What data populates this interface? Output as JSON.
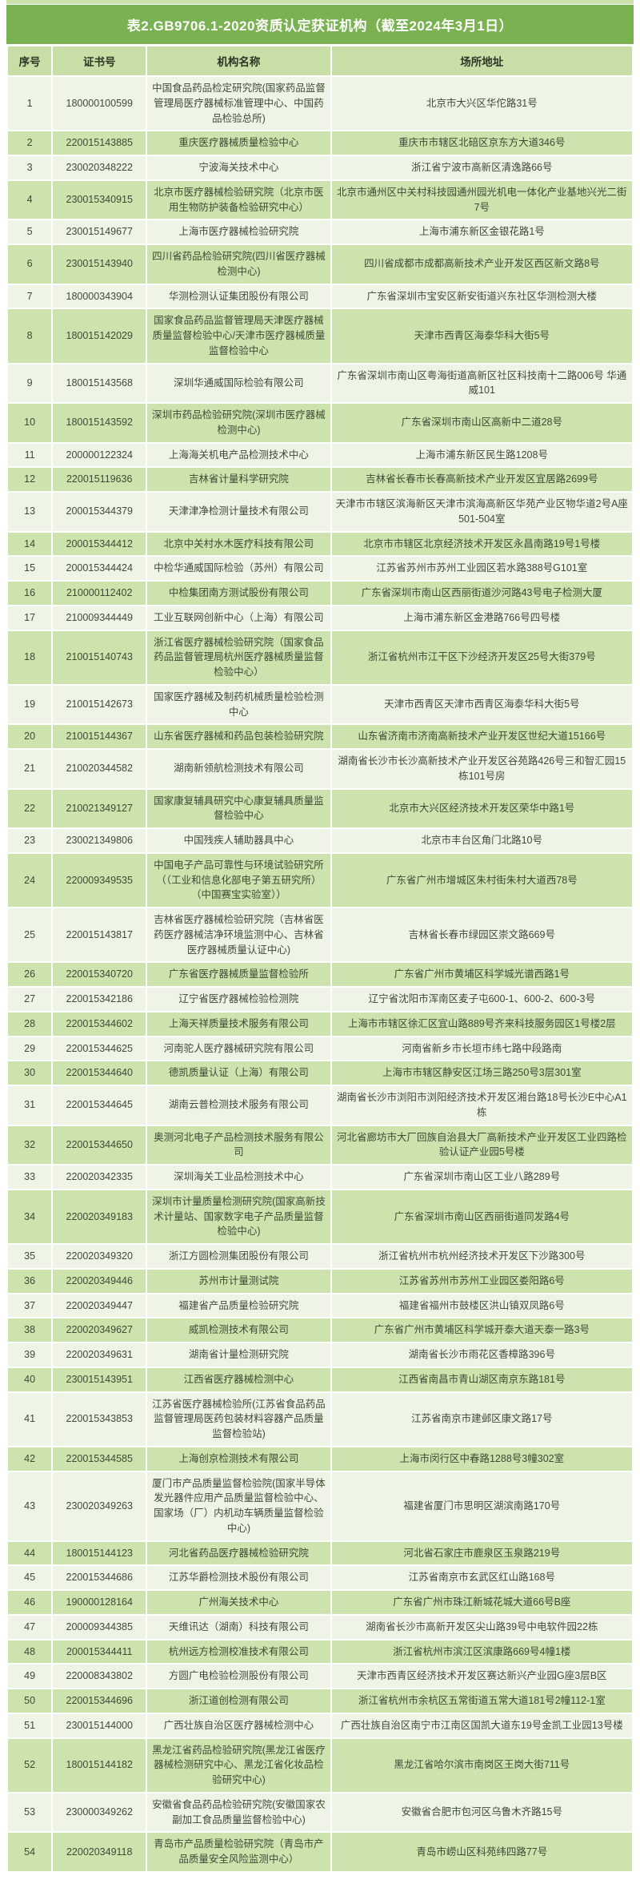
{
  "page": {
    "title": "表2.GB9706.1-2020资质认定获证机构（截至2024年3月1日）"
  },
  "colors": {
    "title_bar": "#7ab151",
    "top_strip": "#cde3ad",
    "header_bg": "#c7dfa6",
    "row_odd": "#eff5e6",
    "row_even": "#cce3ae",
    "title_text": "#ffffff",
    "body_text": "#3c4a34"
  },
  "table": {
    "columns": [
      "序号",
      "证书号",
      "机构名称",
      "场所地址"
    ],
    "rows": [
      {
        "no": "1",
        "cert": "180000100599",
        "name": "中国食品药品检定研究院(国家药品监督管理局医疗器械标准管理中心、中国药品检验总所)",
        "addr": "北京市大兴区华佗路31号"
      },
      {
        "no": "2",
        "cert": "220015143885",
        "name": "重庆医疗器械质量检验中心",
        "addr": "重庆市市辖区北碚区京东方大道346号"
      },
      {
        "no": "3",
        "cert": "230020348222",
        "name": "宁波海关技术中心",
        "addr": "浙江省宁波市高新区清逸路66号"
      },
      {
        "no": "4",
        "cert": "230015340915",
        "name": "北京市医疗器械检验研究院（北京市医用生物防护装备检验研究中心）",
        "addr": "北京市通州区中关村科技园通州园光机电一体化产业基地兴光二街7号"
      },
      {
        "no": "5",
        "cert": "230015149677",
        "name": "上海市医疗器械检验研究院",
        "addr": "上海市浦东新区金银花路1号"
      },
      {
        "no": "6",
        "cert": "230015143940",
        "name": "四川省药品检验研究院(四川省医疗器械检测中心)",
        "addr": "四川省成都市成都高新技术产业开发区西区新文路8号"
      },
      {
        "no": "7",
        "cert": "180000343904",
        "name": "华测检测认证集团股份有限公司",
        "addr": "广东省深圳市宝安区新安街道兴东社区华测检测大楼"
      },
      {
        "no": "8",
        "cert": "180015142029",
        "name": "国家食品药品监督管理局天津医疗器械质量监督检验中心/天津市医疗器械质量监督检验中心",
        "addr": "天津市西青区海泰华科大街5号"
      },
      {
        "no": "9",
        "cert": "180015143568",
        "name": "深圳华通威国际检验有限公司",
        "addr": "广东省深圳市南山区粤海街道高新区社区科技南十二路006号 华通威101"
      },
      {
        "no": "10",
        "cert": "180015143592",
        "name": "深圳市药品检验研究院(深圳市医疗器械检测中心)",
        "addr": "广东省深圳市南山区高新中二道28号"
      },
      {
        "no": "11",
        "cert": "200000122324",
        "name": "上海海关机电产品检测技术中心",
        "addr": "上海市浦东新区民生路1208号"
      },
      {
        "no": "12",
        "cert": "220015119636",
        "name": "吉林省计量科学研究院",
        "addr": "吉林省长春市长春高新技术产业开发区宜居路2699号"
      },
      {
        "no": "13",
        "cert": "200015344379",
        "name": "天津津净检测计量技术有限公司",
        "addr": "天津市市辖区滨海新区天津市滨海高新区华苑产业区物华道2号A座501-504室"
      },
      {
        "no": "14",
        "cert": "200015344412",
        "name": "北京中关村水木医疗科技有限公司",
        "addr": "北京市市辖区北京经济技术开发区永昌南路19号1号楼"
      },
      {
        "no": "15",
        "cert": "200015344424",
        "name": "中检华通威国际检验（苏州）有限公司",
        "addr": "江苏省苏州市苏州工业园区若水路388号G101室"
      },
      {
        "no": "16",
        "cert": "210000112402",
        "name": "中检集团南方测试股份有限公司",
        "addr": "广东省深圳市南山区西丽街道沙河路43号电子检测大厦"
      },
      {
        "no": "17",
        "cert": "210009344449",
        "name": "工业互联网创新中心（上海）有限公司",
        "addr": "上海市浦东新区金港路766号四号楼"
      },
      {
        "no": "18",
        "cert": "210015140743",
        "name": "浙江省医疗器械检验研究院（国家食品药品监督管理局杭州医疗器械质量监督检验中心）",
        "addr": "浙江省杭州市江干区下沙经济开发区25号大街379号"
      },
      {
        "no": "19",
        "cert": "210015142673",
        "name": "国家医疗器械及制药机械质量检验检测中心",
        "addr": "天津市西青区天津市西青区海泰华科大街5号"
      },
      {
        "no": "20",
        "cert": "210015144367",
        "name": "山东省医疗器械和药品包装检验研究院",
        "addr": "山东省济南市济南高新技术产业开发区世纪大道15166号"
      },
      {
        "no": "21",
        "cert": "210020344582",
        "name": "湖南新领航检测技术有限公司",
        "addr": "湖南省长沙市长沙高新技术产业开发区谷苑路426号三和智汇园15栋101号房"
      },
      {
        "no": "22",
        "cert": "210021349127",
        "name": "国家康复辅具研究中心康复辅具质量监督检验中心",
        "addr": "北京市大兴区经济技术开发区荣华中路1号"
      },
      {
        "no": "23",
        "cert": "230021349806",
        "name": "中国残疾人辅助器具中心",
        "addr": "北京市丰台区角门北路10号"
      },
      {
        "no": "24",
        "cert": "220009349535",
        "name": "中国电子产品可靠性与环境试验研究所（（工业和信息化部电子第五研究所）（中国赛宝实验室））",
        "addr": "广东省广州市增城区朱村街朱村大道西78号"
      },
      {
        "no": "25",
        "cert": "220015143817",
        "name": "吉林省医疗器械检验研究院（吉林省医药医疗器械洁净环境监测中心、吉林省医疗器械质量认证中心)",
        "addr": "吉林省长春市绿园区崇文路669号"
      },
      {
        "no": "26",
        "cert": "220015340720",
        "name": "广东省医疗器械质量监督检验所",
        "addr": "广东省广州市黄埔区科学城光谱西路1号"
      },
      {
        "no": "27",
        "cert": "220015342186",
        "name": "辽宁省医疗器械检验检测院",
        "addr": "辽宁省沈阳市浑南区麦子屯600-1、600-2、600-3号"
      },
      {
        "no": "28",
        "cert": "220015344602",
        "name": "上海天祥质量技术服务有限公司",
        "addr": "上海市市辖区徐汇区宜山路889号齐来科技服务园区1号楼2层"
      },
      {
        "no": "29",
        "cert": "220015344625",
        "name": "河南驼人医疗器械研究院有限公司",
        "addr": "河南省新乡市长垣市纬七路中段路南"
      },
      {
        "no": "30",
        "cert": "220015344640",
        "name": "德凯质量认证（上海）有限公司",
        "addr": "上海市市辖区静安区江场三路250号3层301室"
      },
      {
        "no": "31",
        "cert": "220015344645",
        "name": "湖南云普检测技术服务有限公司",
        "addr": "湖南省长沙市浏阳市浏阳经济技术开发区湘台路18号长沙E中心A1栋"
      },
      {
        "no": "32",
        "cert": "220015344650",
        "name": "奥测河北电子产品检测技术服务有限公司",
        "addr": "河北省廊坊市大厂回族自治县大厂高新技术产业开发区工业四路检验认证产业园5号楼"
      },
      {
        "no": "33",
        "cert": "220020342335",
        "name": "深圳海关工业品检测技术中心",
        "addr": "广东省深圳市南山区工业八路289号"
      },
      {
        "no": "34",
        "cert": "220020349183",
        "name": "深圳市计量质量检测研究院(国家高新技术计量站、国家数字电子产品质量监督检验中心)",
        "addr": "广东省深圳市南山区西丽街道同发路4号"
      },
      {
        "no": "35",
        "cert": "220020349320",
        "name": "浙江方圆检测集团股份有限公司",
        "addr": "浙江省杭州市杭州经济技术开发区下沙路300号"
      },
      {
        "no": "36",
        "cert": "220020349446",
        "name": "苏州市计量测试院",
        "addr": "江苏省苏州市苏州工业园区娄阳路6号"
      },
      {
        "no": "37",
        "cert": "220020349447",
        "name": "福建省产品质量检验研究院",
        "addr": "福建省福州市鼓楼区洪山镇双凤路6号"
      },
      {
        "no": "38",
        "cert": "220020349627",
        "name": "威凯检测技术有限公司",
        "addr": "广东省广州市黄埔区科学城开泰大道天泰一路3号"
      },
      {
        "no": "39",
        "cert": "220020349631",
        "name": "湖南省计量检测研究院",
        "addr": "湖南省长沙市雨花区香樟路396号"
      },
      {
        "no": "40",
        "cert": "230015143951",
        "name": "江西省医疗器械检测中心",
        "addr": "江西省南昌市青山湖区南京东路181号"
      },
      {
        "no": "41",
        "cert": "220015343853",
        "name": "江苏省医疗器械检验所(江苏省食品药品监督管理局医药包装材料容器产品质量监督检验站)",
        "addr": "江苏省南京市建邺区康文路17号"
      },
      {
        "no": "42",
        "cert": "220015344585",
        "name": "上海创京检测技术有限公司",
        "addr": "上海市闵行区中春路1288号3幢302室"
      },
      {
        "no": "43",
        "cert": "230020349263",
        "name": "厦门市产品质量监督检验院(国家半导体发光器件应用产品质量监督检验中心、国家场（厂）内机动车辆质量监督检验中心)",
        "addr": "福建省厦门市思明区湖滨南路170号"
      },
      {
        "no": "44",
        "cert": "180015144123",
        "name": "河北省药品医疗器械检验研究院",
        "addr": "河北省石家庄市鹿泉区玉泉路219号"
      },
      {
        "no": "45",
        "cert": "220015344686",
        "name": "江苏华爵检测技术股份有限公司",
        "addr": "江苏省南京市玄武区红山路168号"
      },
      {
        "no": "46",
        "cert": "190000128164",
        "name": "广州海关技术中心",
        "addr": "广东省广州市珠江新城花城大道66号B座"
      },
      {
        "no": "47",
        "cert": "200009344385",
        "name": "天维讯达（湖南）科技有限公司",
        "addr": "湖南省长沙市高新开发区尖山路39号中电软件园22栋"
      },
      {
        "no": "48",
        "cert": "200015344411",
        "name": "杭州远方检测校准技术有限公司",
        "addr": "浙江省杭州市滨江区滨康路669号4幢1楼"
      },
      {
        "no": "49",
        "cert": "220008343802",
        "name": "方圆广电检验检测股份有限公司",
        "addr": "天津市西青区经济技术开发区赛达新兴产业园G座3层B区"
      },
      {
        "no": "50",
        "cert": "220015344696",
        "name": "浙江道创检测有限公司",
        "addr": "浙江省杭州市余杭区五常街道五常大道181号2幢112-1室"
      },
      {
        "no": "51",
        "cert": "230015144000",
        "name": "广西壮族自治区医疗器械检测中心",
        "addr": "广西壮族自治区南宁市江南区国凯大道东19号金凯工业园13号楼"
      },
      {
        "no": "52",
        "cert": "180015144182",
        "name": "黑龙江省药品检验研究院(黑龙江省医疗器械检测研究中心、黑龙江省化妆品检验研究中心)",
        "addr": "黑龙江省哈尔滨市南岗区王岗大街711号"
      },
      {
        "no": "53",
        "cert": "230000349262",
        "name": "安徽省食品药品检验研究院(安徽国家农副加工食品质量监督检验中心)",
        "addr": "安徽省合肥市包河区乌鲁木齐路15号"
      },
      {
        "no": "54",
        "cert": "220020349118",
        "name": "青岛市产品质量检验研究院（青岛市产品质量安全风险监测中心）",
        "addr": "青岛市崂山区科苑纬四路77号"
      }
    ]
  }
}
